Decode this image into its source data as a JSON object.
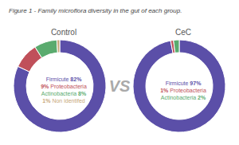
{
  "chart_data": [
    {
      "type": "pie",
      "title": "Figure 1 - Family microflora diversity in the gut of each group.",
      "subtitle": "Control",
      "annotations": [
        "VS"
      ],
      "categories": [
        "Firmicute",
        "Proteobacteria",
        "Actinobacteria",
        "Non identifed"
      ],
      "values": [
        82,
        9,
        8,
        1
      ],
      "value_labels": [
        "82%",
        "9%",
        "8%",
        "1%"
      ],
      "colors": [
        "#5b4fa8",
        "#c0505a",
        "#5aab6e",
        "#c8a87a"
      ],
      "data_labels": true
    },
    {
      "type": "pie",
      "subtitle": "CeC",
      "categories": [
        "Firmicute",
        "Proteobacteria",
        "Actinobacteria"
      ],
      "values": [
        97,
        1,
        2
      ],
      "value_labels": [
        "97%",
        "1%",
        "2%"
      ],
      "colors": [
        "#5b4fa8",
        "#c0505a",
        "#5aab6e"
      ],
      "data_labels": true
    }
  ]
}
